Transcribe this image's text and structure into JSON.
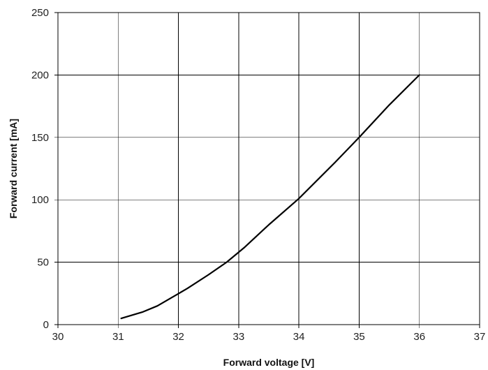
{
  "chart_data": {
    "type": "line",
    "title": "",
    "xlabel": "Forward voltage [V]",
    "ylabel": "Forward current [mA]",
    "xlim": [
      30,
      37
    ],
    "ylim": [
      0,
      250
    ],
    "x_ticks": [
      "30",
      "31",
      "32",
      "33",
      "34",
      "35",
      "36",
      "37"
    ],
    "y_ticks": [
      "0",
      "50",
      "100",
      "150",
      "200",
      "250"
    ],
    "grid": true,
    "legend": "none",
    "series": [
      {
        "x": [
          31.05,
          31.4,
          31.65,
          31.9,
          32.15,
          32.5,
          32.8,
          33.1,
          33.5,
          34.0,
          34.6,
          35.0,
          35.5,
          36.0
        ],
        "y": [
          5,
          10,
          15,
          22,
          29,
          40,
          50,
          62,
          80,
          101,
          130,
          150,
          176,
          200
        ]
      }
    ],
    "line_color": "#000000"
  }
}
